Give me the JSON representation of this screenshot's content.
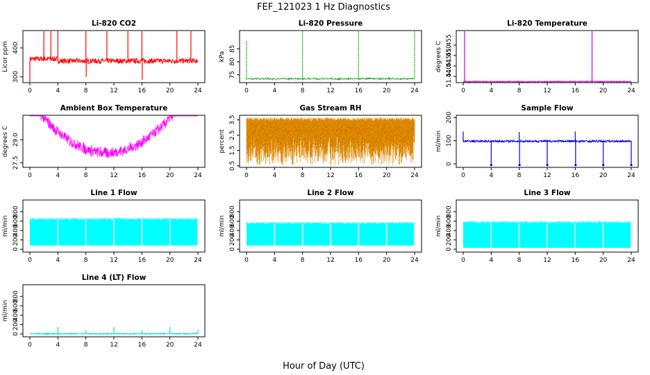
{
  "figure": {
    "title": "FEF_121023  1 Hz Diagnostics",
    "xlabel": "Hour of Day (UTC)"
  },
  "chart_data": [
    {
      "type": "line",
      "title": "Li-820 CO2",
      "ylabel": "Licor ppm",
      "xlim": [
        0,
        24
      ],
      "xticks": [
        0,
        4,
        8,
        12,
        16,
        20,
        24
      ],
      "ylim": [
        280,
        460
      ],
      "yticks": [
        300,
        400
      ],
      "color": "#ff0000",
      "series": [
        {
          "baseline": 355,
          "spikes": [
            [
              0,
              270
            ],
            [
              2,
              460
            ],
            [
              3,
              460
            ],
            [
              4,
              460
            ],
            [
              8,
              460
            ],
            [
              8.05,
              300
            ],
            [
              11,
              460
            ],
            [
              14,
              460
            ],
            [
              16,
              460
            ],
            [
              16.05,
              290
            ],
            [
              21,
              460
            ],
            [
              23,
              460
            ]
          ]
        }
      ]
    },
    {
      "type": "line",
      "title": "Li-820 Pressure",
      "ylabel": "kPa",
      "xlim": [
        0,
        24
      ],
      "xticks": [
        0,
        4,
        8,
        12,
        16,
        20,
        24
      ],
      "ylim": [
        72,
        92
      ],
      "yticks": [
        75,
        80,
        85
      ],
      "color": "#00aa00",
      "series": [
        {
          "baseline": 73.5,
          "spikes": [
            [
              0,
              88
            ],
            [
              8,
              93
            ],
            [
              16,
              93
            ],
            [
              24,
              93
            ]
          ]
        }
      ]
    },
    {
      "type": "line",
      "title": "Li-820 Temperature",
      "ylabel": "degrees C",
      "xlim": [
        0,
        24
      ],
      "xticks": [
        0,
        4,
        8,
        12,
        16,
        20,
        24
      ],
      "ylim": [
        51.437,
        51.462
      ],
      "yticks": [
        51.44,
        51.445,
        51.45,
        51.455
      ],
      "color": "#cc00cc",
      "series": [
        {
          "baseline": 51.4375,
          "spikes": [
            [
              0.2,
              51.462
            ],
            [
              18.4,
              51.462
            ]
          ]
        }
      ]
    },
    {
      "type": "line",
      "title": "Ambient Box Temperature",
      "ylabel": "degrees C",
      "xlim": [
        0,
        24
      ],
      "xticks": [
        0,
        4,
        8,
        12,
        16,
        20,
        24
      ],
      "ylim": [
        27.2,
        30.6
      ],
      "yticks": [
        27.5,
        29.0
      ],
      "color": "#ff00ff",
      "series": [
        {
          "baseline": 29.4,
          "spikes": []
        }
      ]
    },
    {
      "type": "line",
      "title": "Gas Stream RH",
      "ylabel": "percent",
      "xlim": [
        0,
        24
      ],
      "xticks": [
        0,
        4,
        8,
        12,
        16,
        20,
        24
      ],
      "ylim": [
        0.4,
        3.8
      ],
      "yticks": [
        0.5,
        1.5,
        2.5,
        3.5
      ],
      "color": "#dd8800",
      "series": [
        {
          "baseline": 3.6,
          "spikes": []
        }
      ]
    },
    {
      "type": "line",
      "title": "Sample Flow",
      "ylabel": "ml/min",
      "xlim": [
        0,
        24
      ],
      "xticks": [
        0,
        4,
        8,
        12,
        16,
        20,
        24
      ],
      "ylim": [
        -15,
        210
      ],
      "yticks": [
        0,
        100,
        200
      ],
      "color": "#0000ee",
      "series": [
        {
          "baseline": 98,
          "spikes": [
            [
              0,
              140
            ],
            [
              4,
              -5
            ],
            [
              8,
              138
            ],
            [
              8.05,
              -5
            ],
            [
              12,
              -5
            ],
            [
              16,
              140
            ],
            [
              16.05,
              -5
            ],
            [
              20,
              -5
            ],
            [
              24,
              -5
            ]
          ]
        }
      ]
    },
    {
      "type": "area",
      "title": "Line 1 Flow",
      "ylabel": "ml/min",
      "xlim": [
        0,
        24
      ],
      "xticks": [
        0,
        4,
        8,
        12,
        16,
        20,
        24
      ],
      "ylim": [
        -60,
        1050
      ],
      "yticks": [
        0,
        200,
        400,
        600,
        800
      ],
      "color": "#00ffff",
      "series": [
        {
          "low": 80,
          "high": 630,
          "gaps": [
            4,
            8,
            12,
            16,
            20
          ]
        }
      ]
    },
    {
      "type": "area",
      "title": "Line 2 Flow",
      "ylabel": "ml/min",
      "xlim": [
        0,
        24
      ],
      "xticks": [
        0,
        4,
        8,
        12,
        16,
        20,
        24
      ],
      "ylim": [
        -60,
        1050
      ],
      "yticks": [
        0,
        200,
        400,
        600,
        800
      ],
      "color": "#00ffff",
      "series": [
        {
          "low": 80,
          "high": 540,
          "gaps": [
            4,
            8,
            12,
            16,
            20
          ]
        }
      ]
    },
    {
      "type": "area",
      "title": "Line 3 Flow",
      "ylabel": "ml/min",
      "xlim": [
        0,
        24
      ],
      "xticks": [
        0,
        4,
        8,
        12,
        16,
        20,
        24
      ],
      "ylim": [
        -60,
        1050
      ],
      "yticks": [
        0,
        200,
        400,
        600,
        800
      ],
      "color": "#00ffff",
      "series": [
        {
          "low": 30,
          "high": 560,
          "gaps": [
            4,
            8,
            12,
            16,
            20
          ]
        }
      ]
    },
    {
      "type": "line",
      "title": "Line 4 (LT) Flow",
      "ylabel": "ml/min",
      "xlim": [
        0,
        24
      ],
      "xticks": [
        0,
        4,
        8,
        12,
        16,
        20,
        24
      ],
      "ylim": [
        -60,
        1050
      ],
      "yticks": [
        0,
        200,
        400,
        600,
        800
      ],
      "color": "#00e0e0",
      "series": [
        {
          "baseline": 5,
          "spikes": [
            [
              4,
              150
            ],
            [
              8,
              80
            ],
            [
              12,
              150
            ],
            [
              16,
              80
            ],
            [
              20,
              150
            ],
            [
              24,
              90
            ]
          ]
        }
      ]
    }
  ]
}
